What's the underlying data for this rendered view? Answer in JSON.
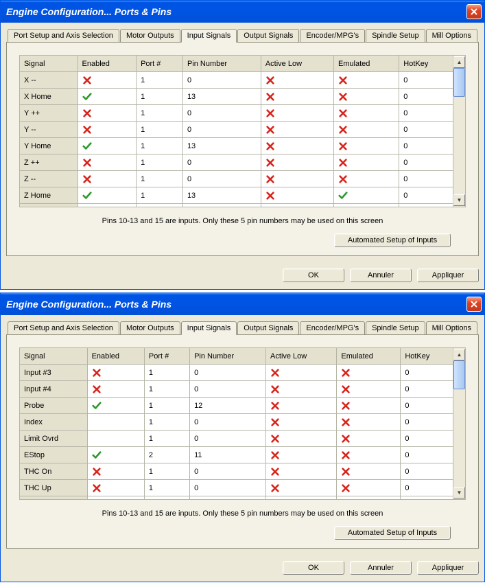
{
  "title": "Engine Configuration... Ports & Pins",
  "tabs": [
    "Port Setup and Axis Selection",
    "Motor Outputs",
    "Input Signals",
    "Output Signals",
    "Encoder/MPG's",
    "Spindle Setup",
    "Mill Options"
  ],
  "active_tab": 2,
  "columns": [
    "Signal",
    "Enabled",
    "Port #",
    "Pin Number",
    "Active Low",
    "Emulated",
    "HotKey"
  ],
  "note": "Pins 10-13 and 15 are inputs. Only these 5 pin numbers may be used on this screen",
  "autosetup_label": "Automated Setup of Inputs",
  "buttons": {
    "ok": "OK",
    "cancel": "Annuler",
    "apply": "Appliquer"
  },
  "colors": {
    "titlebar_blue": "#0054e3",
    "panel_bg": "#f4f2e7",
    "dialog_bg": "#ece9d8",
    "header_bg": "#e5e1cf",
    "cell_bg": "#ffffff",
    "border": "#b5b5a6",
    "check_green": "#2a9a2a",
    "cross_red": "#d8241a"
  },
  "table1_rows": [
    {
      "signal": "X --",
      "enabled": false,
      "port": "1",
      "pin": "0",
      "active_low": false,
      "emulated": false,
      "hotkey": "0"
    },
    {
      "signal": "X Home",
      "enabled": true,
      "port": "1",
      "pin": "13",
      "active_low": false,
      "emulated": false,
      "hotkey": "0"
    },
    {
      "signal": "Y ++",
      "enabled": false,
      "port": "1",
      "pin": "0",
      "active_low": false,
      "emulated": false,
      "hotkey": "0"
    },
    {
      "signal": "Y --",
      "enabled": false,
      "port": "1",
      "pin": "0",
      "active_low": false,
      "emulated": false,
      "hotkey": "0"
    },
    {
      "signal": "Y Home",
      "enabled": true,
      "port": "1",
      "pin": "13",
      "active_low": false,
      "emulated": false,
      "hotkey": "0"
    },
    {
      "signal": "Z ++",
      "enabled": false,
      "port": "1",
      "pin": "0",
      "active_low": false,
      "emulated": false,
      "hotkey": "0"
    },
    {
      "signal": "Z --",
      "enabled": false,
      "port": "1",
      "pin": "0",
      "active_low": false,
      "emulated": false,
      "hotkey": "0"
    },
    {
      "signal": "Z Home",
      "enabled": true,
      "port": "1",
      "pin": "13",
      "active_low": false,
      "emulated": true,
      "hotkey": "0"
    }
  ],
  "table2_rows": [
    {
      "signal": "Input #3",
      "enabled": false,
      "port": "1",
      "pin": "0",
      "active_low": false,
      "emulated": false,
      "hotkey": "0"
    },
    {
      "signal": "Input #4",
      "enabled": false,
      "port": "1",
      "pin": "0",
      "active_low": false,
      "emulated": false,
      "hotkey": "0"
    },
    {
      "signal": "Probe",
      "enabled": true,
      "port": "1",
      "pin": "12",
      "active_low": false,
      "emulated": false,
      "hotkey": "0"
    },
    {
      "signal": "Index",
      "enabled": null,
      "port": "1",
      "pin": "0",
      "active_low": false,
      "emulated": false,
      "hotkey": "0"
    },
    {
      "signal": "Limit Ovrd",
      "enabled": null,
      "port": "1",
      "pin": "0",
      "active_low": false,
      "emulated": false,
      "hotkey": "0"
    },
    {
      "signal": "EStop",
      "enabled": true,
      "port": "2",
      "pin": "11",
      "active_low": false,
      "emulated": false,
      "hotkey": "0"
    },
    {
      "signal": "THC On",
      "enabled": false,
      "port": "1",
      "pin": "0",
      "active_low": false,
      "emulated": false,
      "hotkey": "0"
    },
    {
      "signal": "THC Up",
      "enabled": false,
      "port": "1",
      "pin": "0",
      "active_low": false,
      "emulated": false,
      "hotkey": "0"
    }
  ],
  "col_widths": {
    "signal": 80,
    "enabled": 80,
    "port": 80,
    "pin": 80,
    "activelow": 80,
    "emulated": 80,
    "hotkey": 80
  }
}
